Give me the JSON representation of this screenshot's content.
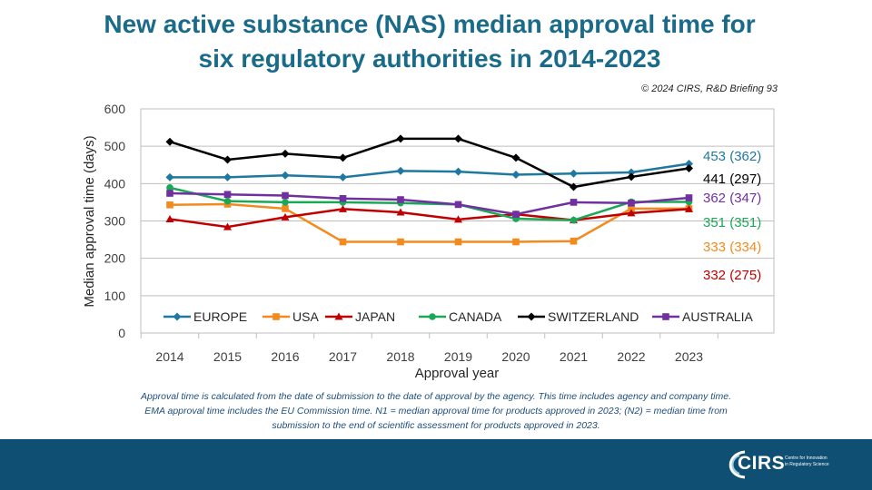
{
  "header": {
    "title_line1": "New active substance (NAS) median approval time for",
    "title_line2": "six regulatory authorities in 2014-2023",
    "copyright": "© 2024 CIRS, R&D Briefing 93"
  },
  "footnote": {
    "line1": "Approval time is calculated from the date of submission to the date of approval by the agency. This time includes agency and company time.",
    "line2": "EMA approval time includes the EU Commission time.  N1 = median approval time for products approved in 2023; (N2) = median time from",
    "line3": "submission to the end of scientific assessment for products approved in 2023."
  },
  "footer": {
    "logo_text": "CIRS",
    "logo_subtitle": "Centre for Innovation in Regulatory Science"
  },
  "chart_data": {
    "type": "line",
    "title": "",
    "xlabel": "Approval year",
    "ylabel": "Median approval time (days)",
    "ylim": [
      0,
      600
    ],
    "yticks": [
      0,
      100,
      200,
      300,
      400,
      500,
      600
    ],
    "grid": true,
    "legend_placement": "inside-bottom",
    "categories": [
      "2014",
      "2015",
      "2016",
      "2017",
      "2018",
      "2019",
      "2020",
      "2021",
      "2022",
      "2023"
    ],
    "series": [
      {
        "name": "EUROPE",
        "color": "#1f78a0",
        "marker": "diamond",
        "values": [
          417,
          417,
          422,
          417,
          434,
          432,
          424,
          427,
          430,
          453
        ],
        "end_label": "453 (362)"
      },
      {
        "name": "USA",
        "color": "#f28a1d",
        "marker": "square",
        "values": [
          343,
          345,
          333,
          244,
          244,
          244,
          244,
          246,
          333,
          333
        ],
        "end_label": "333 (334)"
      },
      {
        "name": "JAPAN",
        "color": "#c00000",
        "marker": "triangle",
        "values": [
          305,
          284,
          310,
          332,
          323,
          304,
          318,
          302,
          321,
          332
        ],
        "end_label": "332 (275)"
      },
      {
        "name": "CANADA",
        "color": "#1aa857",
        "marker": "circle",
        "values": [
          389,
          353,
          350,
          350,
          348,
          344,
          306,
          302,
          351,
          351
        ],
        "end_label": "351 (351)"
      },
      {
        "name": "SWITZERLAND",
        "color": "#000000",
        "marker": "diamond",
        "values": [
          512,
          464,
          480,
          469,
          520,
          520,
          469,
          391,
          418,
          441
        ],
        "end_label": "441 (297)"
      },
      {
        "name": "AUSTRALIA",
        "color": "#7030a0",
        "marker": "square",
        "values": [
          374,
          371,
          368,
          360,
          357,
          344,
          318,
          350,
          348,
          362
        ],
        "end_label": "362 (347)"
      }
    ]
  }
}
